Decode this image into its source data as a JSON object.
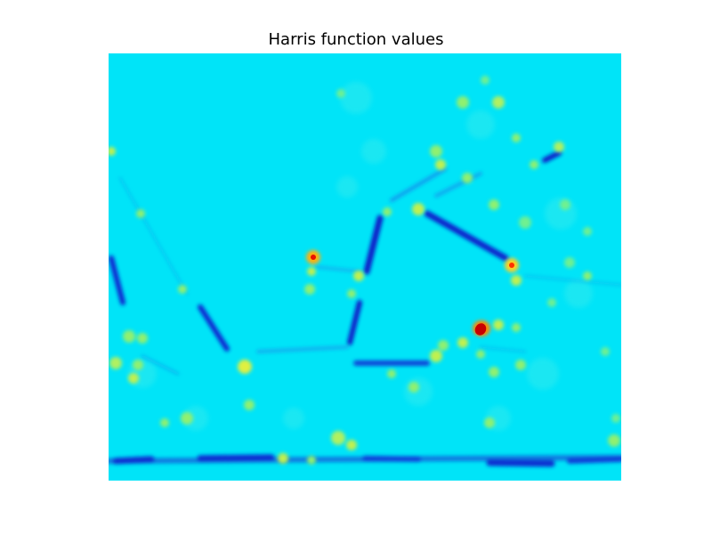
{
  "chart_data": {
    "type": "heatmap",
    "title": "Harris function values",
    "colormap": "jet",
    "background_color": "#00e4f8",
    "axes_visible": false,
    "grid": false,
    "legend": "none",
    "colorbar": false
  }
}
